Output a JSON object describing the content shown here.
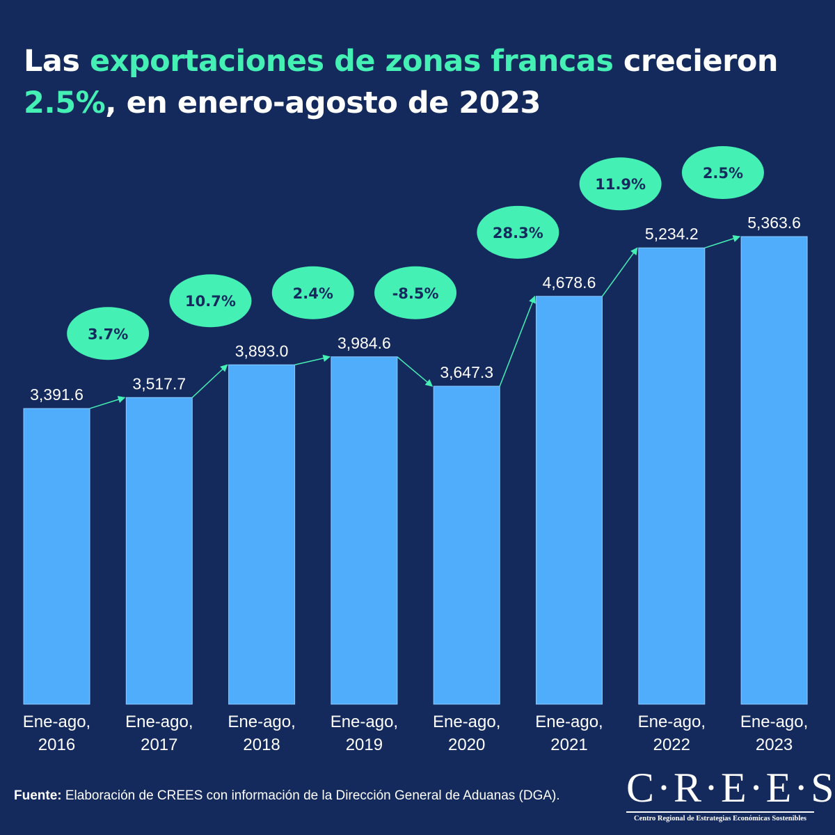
{
  "title": {
    "part1": "Las ",
    "highlight1": "exportaciones de zonas francas",
    "part2": " crecieron",
    "highlight2": "2.5%",
    "part3": ", en enero-agosto de 2023"
  },
  "colors": {
    "background": "#142a5c",
    "bar": "#4fadfc",
    "accent": "#45f0b4",
    "text": "#ffffff",
    "badge_text": "#142a5c"
  },
  "chart_data": {
    "type": "bar",
    "title": "Las exportaciones de zonas francas crecieron 2.5%, en enero-agosto de 2023",
    "xlabel": "",
    "ylabel": "",
    "ylim": [
      0,
      5363.6
    ],
    "grid": false,
    "categories": [
      [
        "Ene-ago,",
        "2016"
      ],
      [
        "Ene-ago,",
        "2017"
      ],
      [
        "Ene-ago,",
        "2018"
      ],
      [
        "Ene-ago,",
        "2019"
      ],
      [
        "Ene-ago,",
        "2020"
      ],
      [
        "Ene-ago,",
        "2021"
      ],
      [
        "Ene-ago,",
        "2022"
      ],
      [
        "Ene-ago,",
        "2023"
      ]
    ],
    "values": [
      3391.6,
      3517.7,
      3893.0,
      3984.6,
      3647.3,
      4678.6,
      5234.2,
      5363.6
    ],
    "value_labels": [
      "3,391.6",
      "3,517.7",
      "3,893.0",
      "3,984.6",
      "3,647.3",
      "4,678.6",
      "5,234.2",
      "5,363.6"
    ],
    "growth_labels": [
      "3.7%",
      "10.7%",
      "2.4%",
      "-8.5%",
      "28.3%",
      "11.9%",
      "2.5%"
    ]
  },
  "footer": {
    "label": "Fuente:",
    "text": " Elaboración de CREES con información de la Dirección General de Aduanas (DGA)."
  },
  "logo": {
    "name": "C·R·E·E·S",
    "subtitle": "Centro Regional de Estrategias Económicas Sostenibles"
  }
}
